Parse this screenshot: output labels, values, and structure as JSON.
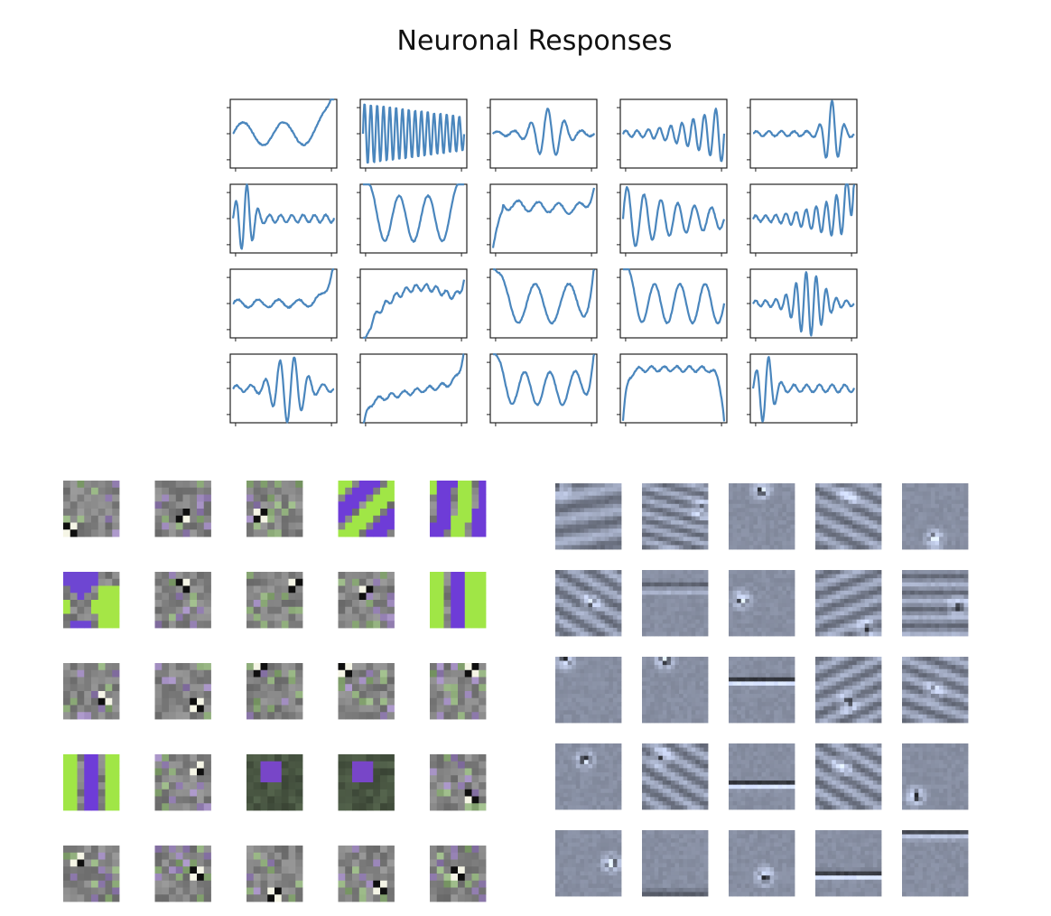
{
  "title": "Neuronal Responses",
  "colors": {
    "trace": "#4a86bd",
    "axis": "#222222",
    "color_patch_base": "#8c8c8c",
    "color_patch_purple": "#6a3fd8",
    "color_patch_green": "#a8f03c",
    "gray_patch_base": "#8a93a8"
  },
  "chart_data": [
    {
      "type": "line",
      "rows": 4,
      "cols": 5,
      "panels": [
        {
          "shape": "slow-wave-rising-end",
          "freq": 2.5,
          "env": "flat",
          "amp": 0.35,
          "trend": "end-spike"
        },
        {
          "shape": "dense-oscillation",
          "freq": 16,
          "env": "decay",
          "amp": 0.95,
          "trend": "none"
        },
        {
          "shape": "mid-burst",
          "freq": 6,
          "env": "mid",
          "amp": 0.7,
          "trend": "none"
        },
        {
          "shape": "growing-oscillation",
          "freq": 9,
          "env": "grow",
          "amp": 0.9,
          "trend": "none"
        },
        {
          "shape": "late-burst",
          "freq": 8,
          "env": "late",
          "amp": 0.95,
          "trend": "none"
        },
        {
          "shape": "early-burst",
          "freq": 9,
          "env": "early",
          "amp": 0.95,
          "trend": "none"
        },
        {
          "shape": "slow-wave",
          "freq": 3.5,
          "env": "flat",
          "amp": 0.7,
          "trend": "edge-spikes"
        },
        {
          "shape": "jump-plateau",
          "freq": 5,
          "env": "flat",
          "amp": 0.15,
          "trend": "jump-up"
        },
        {
          "shape": "early-decay",
          "freq": 6,
          "env": "early-slow",
          "amp": 0.9,
          "trend": "none"
        },
        {
          "shape": "late-growth",
          "freq": 10,
          "env": "grow",
          "amp": 0.9,
          "trend": "end-spike"
        },
        {
          "shape": "noisy-rising-end",
          "freq": 5,
          "env": "flat",
          "amp": 0.12,
          "trend": "end-spike"
        },
        {
          "shape": "rising-hump",
          "freq": 10,
          "env": "flat",
          "amp": 0.1,
          "trend": "arch"
        },
        {
          "shape": "slow-wave",
          "freq": 3,
          "env": "flat",
          "amp": 0.6,
          "trend": "edge-spikes"
        },
        {
          "shape": "slow-wave",
          "freq": 4,
          "env": "flat",
          "amp": 0.6,
          "trend": "start-spike"
        },
        {
          "shape": "mid-burst",
          "freq": 10,
          "env": "mid",
          "amp": 0.9,
          "trend": "none"
        },
        {
          "shape": "mid-burst",
          "freq": 7,
          "env": "mid",
          "amp": 0.95,
          "trend": "none"
        },
        {
          "shape": "rising-noise",
          "freq": 8,
          "env": "flat",
          "amp": 0.08,
          "trend": "rise"
        },
        {
          "shape": "slow-wave",
          "freq": 4,
          "env": "flat",
          "amp": 0.5,
          "trend": "edge-spikes"
        },
        {
          "shape": "plateau",
          "freq": 8,
          "env": "flat",
          "amp": 0.08,
          "trend": "plateau"
        },
        {
          "shape": "early-burst",
          "freq": 8,
          "env": "early",
          "amp": 0.95,
          "trend": "none"
        }
      ]
    },
    {
      "type": "heatmap",
      "rows": 5,
      "cols": 5,
      "resolution": 8,
      "palette": "purple-green",
      "patches": [
        {
          "kind": "noise",
          "seed": 1,
          "spot": [
            0.1,
            0.85
          ]
        },
        {
          "kind": "noise",
          "seed": 2,
          "spot": [
            0.55,
            0.65
          ]
        },
        {
          "kind": "noise",
          "seed": 3,
          "spot": [
            0.25,
            0.6
          ]
        },
        {
          "kind": "stripes",
          "seed": 4,
          "angle": 45
        },
        {
          "kind": "stripes",
          "seed": 5,
          "angle": 10
        },
        {
          "kind": "blobs",
          "seed": 6
        },
        {
          "kind": "noise",
          "seed": 7,
          "spot": [
            0.55,
            0.2
          ]
        },
        {
          "kind": "noise",
          "seed": 8,
          "spot": [
            0.85,
            0.2
          ]
        },
        {
          "kind": "noise",
          "seed": 9,
          "spot": [
            0.45,
            0.35
          ]
        },
        {
          "kind": "stripes",
          "seed": 10,
          "angle": 0
        },
        {
          "kind": "noise",
          "seed": 11,
          "spot": [
            0.7,
            0.65
          ]
        },
        {
          "kind": "noise",
          "seed": 12,
          "spot": [
            0.7,
            0.75
          ]
        },
        {
          "kind": "noise",
          "seed": 13,
          "spot": [
            0.2,
            0.1
          ]
        },
        {
          "kind": "noise",
          "seed": 14,
          "spot": [
            0.15,
            0.1
          ]
        },
        {
          "kind": "noise",
          "seed": 15,
          "spot": [
            0.75,
            0.1
          ]
        },
        {
          "kind": "stripes",
          "seed": 16,
          "angle": 0
        },
        {
          "kind": "noise",
          "seed": 17,
          "spot": [
            0.8,
            0.3
          ]
        },
        {
          "kind": "dark",
          "seed": 18
        },
        {
          "kind": "dark",
          "seed": 19
        },
        {
          "kind": "noise",
          "seed": 20,
          "spot": [
            0.7,
            0.8
          ]
        },
        {
          "kind": "noise",
          "seed": 21,
          "spot": [
            0.3,
            0.3
          ]
        },
        {
          "kind": "noise",
          "seed": 22,
          "spot": [
            0.7,
            0.5
          ]
        },
        {
          "kind": "noise",
          "seed": 23,
          "spot": [
            0.5,
            0.85
          ]
        },
        {
          "kind": "noise",
          "seed": 24,
          "spot": [
            0.75,
            0.75
          ]
        },
        {
          "kind": "noise",
          "seed": 25,
          "spot": [
            0.5,
            0.5
          ]
        }
      ]
    },
    {
      "type": "heatmap",
      "rows": 5,
      "cols": 5,
      "resolution": 16,
      "palette": "blue-gray",
      "patches": [
        {
          "kind": "grating",
          "seed": 31,
          "angle": 170,
          "freq": 3,
          "spot": [
            0.1,
            0.05
          ]
        },
        {
          "kind": "grating",
          "seed": 32,
          "angle": 15,
          "freq": 5,
          "spot": [
            0.9,
            0.4
          ]
        },
        {
          "kind": "blob",
          "seed": 33,
          "spot": [
            0.5,
            0.1
          ]
        },
        {
          "kind": "grating",
          "seed": 34,
          "angle": 25,
          "freq": 4,
          "spot": [
            0.5,
            0.2
          ]
        },
        {
          "kind": "blob",
          "seed": 35,
          "spot": [
            0.5,
            0.85
          ]
        },
        {
          "kind": "grating",
          "seed": 36,
          "angle": 30,
          "freq": 4,
          "spot": [
            0.55,
            0.5
          ]
        },
        {
          "kind": "line",
          "seed": 37,
          "angle": 0,
          "spot": [
            0.5,
            0.25
          ]
        },
        {
          "kind": "blob",
          "seed": 38,
          "spot": [
            0.2,
            0.45
          ]
        },
        {
          "kind": "grating",
          "seed": 39,
          "angle": 160,
          "freq": 4,
          "spot": [
            0.75,
            0.9
          ]
        },
        {
          "kind": "grating",
          "seed": 40,
          "angle": 0,
          "freq": 4,
          "spot": [
            0.85,
            0.55
          ]
        },
        {
          "kind": "blob",
          "seed": 41,
          "spot": [
            0.15,
            0.05
          ]
        },
        {
          "kind": "blob",
          "seed": 42,
          "spot": [
            0.35,
            0.05
          ]
        },
        {
          "kind": "line",
          "seed": 43,
          "angle": 0,
          "spot": [
            0.5,
            0.35
          ]
        },
        {
          "kind": "grating",
          "seed": 44,
          "angle": 155,
          "freq": 4,
          "spot": [
            0.5,
            0.7
          ]
        },
        {
          "kind": "grating",
          "seed": 45,
          "angle": 20,
          "freq": 4,
          "spot": [
            0.5,
            0.5
          ]
        },
        {
          "kind": "blob",
          "seed": 46,
          "spot": [
            0.45,
            0.25
          ]
        },
        {
          "kind": "grating",
          "seed": 47,
          "angle": 30,
          "freq": 4,
          "spot": [
            0.3,
            0.2
          ]
        },
        {
          "kind": "line",
          "seed": 48,
          "angle": 175,
          "spot": [
            0.5,
            0.6
          ]
        },
        {
          "kind": "grating",
          "seed": 49,
          "angle": 30,
          "freq": 4,
          "spot": [
            0.4,
            0.35
          ]
        },
        {
          "kind": "blob",
          "seed": 50,
          "spot": [
            0.2,
            0.8
          ]
        },
        {
          "kind": "blob",
          "seed": 51,
          "spot": [
            0.85,
            0.5
          ]
        },
        {
          "kind": "line",
          "seed": 52,
          "angle": 0,
          "spot": [
            0.3,
            0.95
          ]
        },
        {
          "kind": "blob",
          "seed": 53,
          "spot": [
            0.55,
            0.7
          ]
        },
        {
          "kind": "line",
          "seed": 54,
          "angle": 175,
          "spot": [
            0.5,
            0.65
          ]
        },
        {
          "kind": "line",
          "seed": 55,
          "angle": 0,
          "spot": [
            0.9,
            0.05
          ]
        }
      ]
    }
  ]
}
